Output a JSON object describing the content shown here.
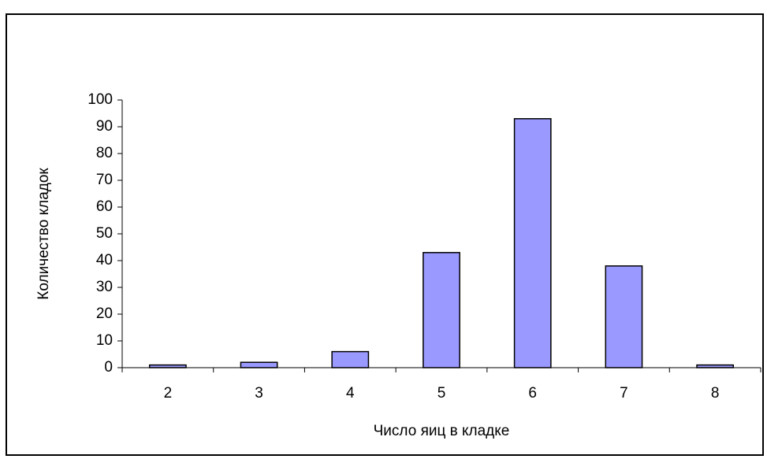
{
  "chart_data": {
    "type": "bar",
    "x_label": "Число яиц в кладке",
    "y_label": "Количество кладок",
    "categories": [
      "2",
      "3",
      "4",
      "5",
      "6",
      "7",
      "8"
    ],
    "values": [
      1,
      2,
      6,
      43,
      93,
      38,
      1
    ],
    "color": "#9999ff",
    "ylim": [
      0,
      100
    ],
    "yticks": [
      0,
      10,
      20,
      30,
      40,
      50,
      60,
      70,
      80,
      90,
      100
    ],
    "grid": false
  }
}
